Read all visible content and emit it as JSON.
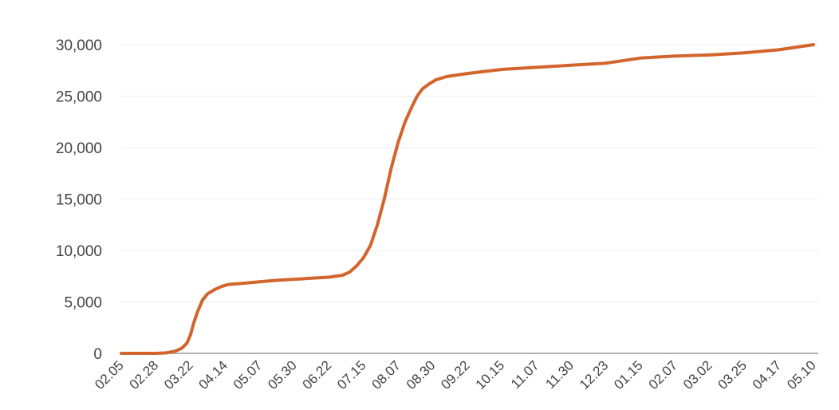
{
  "chart_data": {
    "type": "line",
    "title": "",
    "xlabel": "",
    "ylabel": "",
    "ylim": [
      0,
      30000
    ],
    "grid": true,
    "legend": "none",
    "y_ticks": [
      0,
      5000,
      10000,
      15000,
      20000,
      25000,
      30000
    ],
    "y_tick_labels": [
      "0",
      "5,000",
      "10,000",
      "15,000",
      "20,000",
      "25,000",
      "30,000"
    ],
    "categories": [
      "02.05",
      "02.28",
      "03.22",
      "04.14",
      "05.07",
      "05.30",
      "06.22",
      "07.15",
      "08.07",
      "08.30",
      "09.22",
      "10.15",
      "11.07",
      "11.30",
      "12.23",
      "01.15",
      "02.07",
      "03.02",
      "03.25",
      "04.17",
      "05.10"
    ],
    "series": [
      {
        "color": "#d2642c",
        "points": [
          [
            0,
            0
          ],
          [
            1,
            0
          ],
          [
            1.3,
            50
          ],
          [
            1.55,
            200
          ],
          [
            1.75,
            500
          ],
          [
            1.9,
            1000
          ],
          [
            2.0,
            1800
          ],
          [
            2.1,
            3000
          ],
          [
            2.2,
            4000
          ],
          [
            2.35,
            5200
          ],
          [
            2.5,
            5800
          ],
          [
            2.7,
            6200
          ],
          [
            2.9,
            6500
          ],
          [
            3.1,
            6700
          ],
          [
            3.5,
            6800
          ],
          [
            4.0,
            6950
          ],
          [
            4.5,
            7100
          ],
          [
            5.0,
            7200
          ],
          [
            5.5,
            7300
          ],
          [
            6.0,
            7400
          ],
          [
            6.4,
            7600
          ],
          [
            6.6,
            7900
          ],
          [
            6.8,
            8500
          ],
          [
            7.0,
            9300
          ],
          [
            7.2,
            10500
          ],
          [
            7.4,
            12500
          ],
          [
            7.6,
            15000
          ],
          [
            7.8,
            18000
          ],
          [
            8.0,
            20500
          ],
          [
            8.2,
            22500
          ],
          [
            8.4,
            24000
          ],
          [
            8.55,
            25000
          ],
          [
            8.7,
            25700
          ],
          [
            8.9,
            26200
          ],
          [
            9.1,
            26600
          ],
          [
            9.4,
            26900
          ],
          [
            10.0,
            27200
          ],
          [
            11.0,
            27600
          ],
          [
            12.0,
            27800
          ],
          [
            13.0,
            28000
          ],
          [
            14.0,
            28200
          ],
          [
            15.0,
            28700
          ],
          [
            16.0,
            28900
          ],
          [
            17.0,
            29000
          ],
          [
            18.0,
            29200
          ],
          [
            19.0,
            29500
          ],
          [
            20.0,
            30000
          ]
        ]
      }
    ]
  }
}
